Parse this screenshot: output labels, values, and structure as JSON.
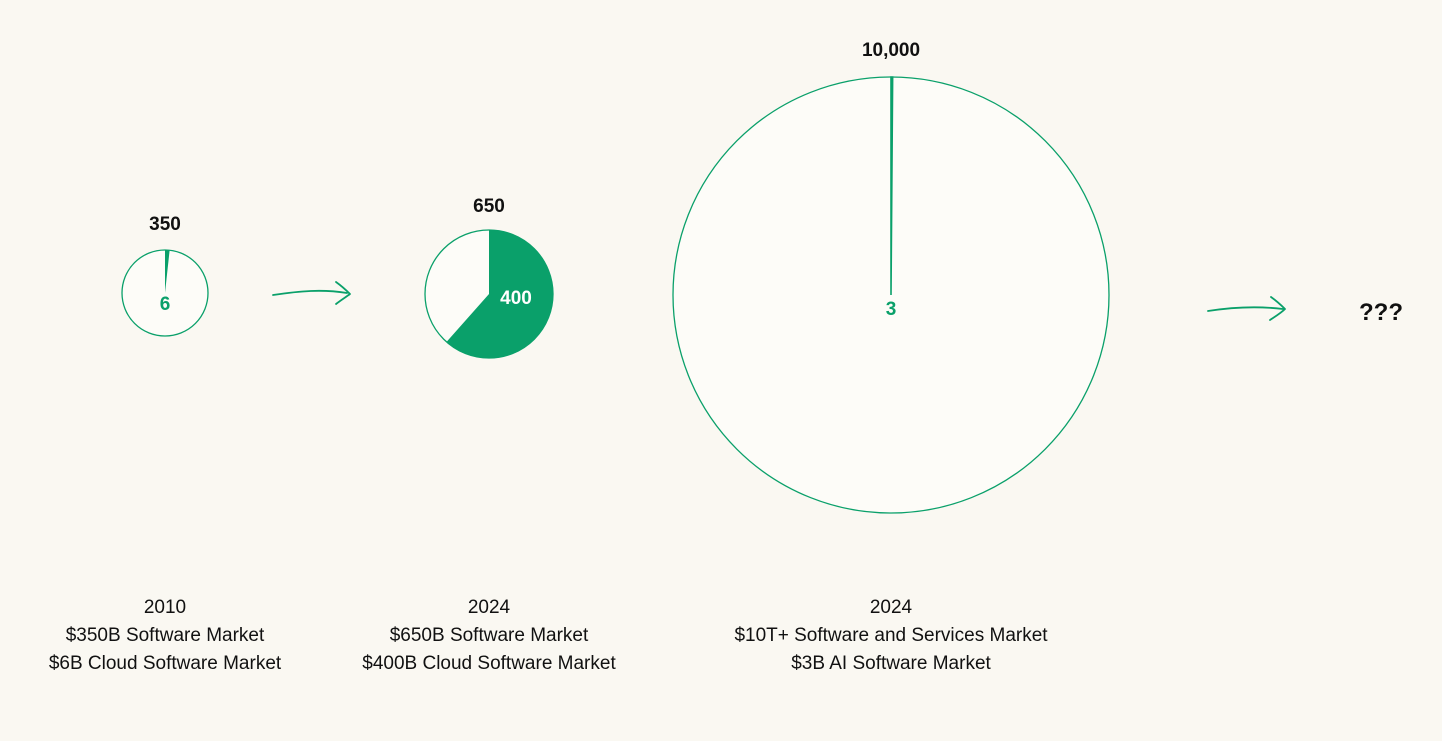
{
  "chart_data": {
    "type": "pie",
    "accent_color": "#0AA06A",
    "background": "#FAF8F2",
    "charts": [
      {
        "total": 350,
        "total_label": "350",
        "part": 6,
        "part_label": "6",
        "caption": [
          "2010",
          "$350B Software Market",
          "$6B Cloud Software Market"
        ]
      },
      {
        "total": 650,
        "total_label": "650",
        "part": 400,
        "part_label": "400",
        "caption": [
          "2024",
          "$650B Software Market",
          "$400B Cloud Software Market"
        ]
      },
      {
        "total": 10000,
        "total_label": "10,000",
        "part": 3,
        "part_label": "3",
        "caption": [
          "2024",
          "$10T+ Software and Services Market",
          "$3B AI Software Market"
        ]
      }
    ],
    "future_label": "???"
  }
}
